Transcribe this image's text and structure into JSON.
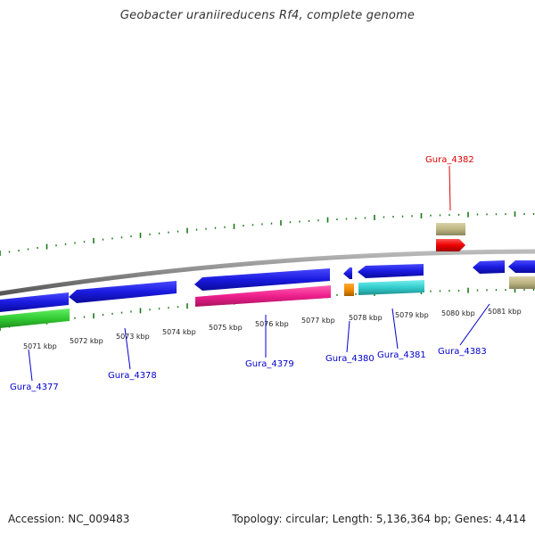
{
  "title": "Geobacter uraniireducens Rf4, complete genome",
  "footer": {
    "accession": "Accession: NC_009483",
    "topology": "Topology: circular; Length: 5,136,364 bp; Genes: 4,414"
  },
  "scale": {
    "ticks": [
      "5071 kbp",
      "5072 kbp",
      "5073 kbp",
      "5074 kbp",
      "5075 kbp",
      "5076 kbp",
      "5077 kbp",
      "5078 kbp",
      "5079 kbp",
      "5080 kbp",
      "5081 kbp"
    ]
  },
  "genes": [
    {
      "label": "Gura_4377",
      "color": "#0000cc"
    },
    {
      "label": "Gura_4378",
      "color": "#0000cc"
    },
    {
      "label": "Gura_4379",
      "color": "#0000cc"
    },
    {
      "label": "Gura_4380",
      "color": "#0000cc"
    },
    {
      "label": "Gura_4381",
      "color": "#0000cc"
    },
    {
      "label": "Gura_4382",
      "color": "#dd0000"
    },
    {
      "label": "Gura_4383",
      "color": "#0000cc"
    }
  ],
  "colors": {
    "cds_blue": "#1a1adf",
    "green": "#33cc33",
    "magenta": "#ee1f8c",
    "orange": "#f08a00",
    "cyan": "#33cccc",
    "khaki": "#bdb582",
    "red": "#ee0000",
    "tick_green": "#1a7a1a",
    "backbone": "#888888"
  }
}
